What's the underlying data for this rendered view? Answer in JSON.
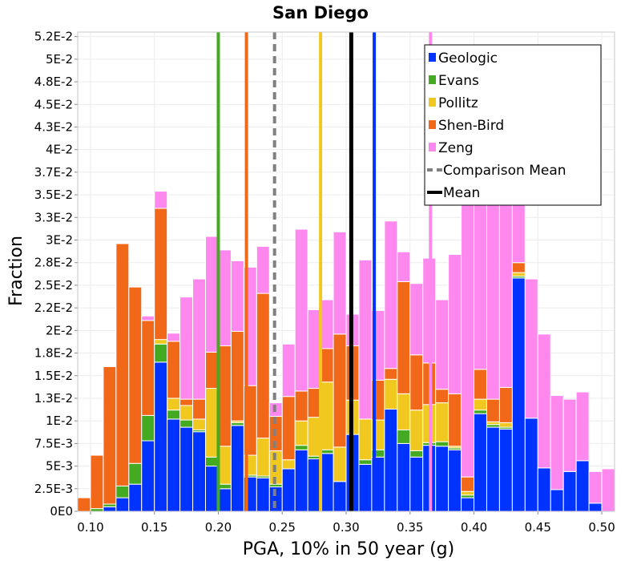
{
  "chart_data": {
    "type": "bar",
    "stacked": true,
    "title": "San Diego",
    "xlabel": "PGA, 10% in 50 year (g)",
    "ylabel": "Fraction",
    "xlim": [
      0.09,
      0.51
    ],
    "ylim": [
      0,
      0.053
    ],
    "grid": true,
    "legend_position": "top-right",
    "bin_width": 0.01,
    "x_ticks": [
      {
        "value": 0.1,
        "label": "0.10"
      },
      {
        "value": 0.15,
        "label": "0.15"
      },
      {
        "value": 0.2,
        "label": "0.20"
      },
      {
        "value": 0.25,
        "label": "0.25"
      },
      {
        "value": 0.3,
        "label": "0.30"
      },
      {
        "value": 0.35,
        "label": "0.35"
      },
      {
        "value": 0.4,
        "label": "0.40"
      },
      {
        "value": 0.45,
        "label": "0.45"
      },
      {
        "value": 0.5,
        "label": "0.50"
      }
    ],
    "y_ticks": [
      {
        "value": 0,
        "label": "0E0"
      },
      {
        "value": 0.0025,
        "label": "2.5E-3"
      },
      {
        "value": 0.005,
        "label": "5E-3"
      },
      {
        "value": 0.0075,
        "label": "7.5E-3"
      },
      {
        "value": 0.01,
        "label": "1E-2"
      },
      {
        "value": 0.0125,
        "label": "1.3E-2"
      },
      {
        "value": 0.015,
        "label": "1.5E-2"
      },
      {
        "value": 0.0175,
        "label": "1.8E-2"
      },
      {
        "value": 0.02,
        "label": "2E-2"
      },
      {
        "value": 0.0225,
        "label": "2.2E-2"
      },
      {
        "value": 0.025,
        "label": "2.5E-2"
      },
      {
        "value": 0.0275,
        "label": "2.8E-2"
      },
      {
        "value": 0.03,
        "label": "3E-2"
      },
      {
        "value": 0.0325,
        "label": "3.3E-2"
      },
      {
        "value": 0.035,
        "label": "3.5E-2"
      },
      {
        "value": 0.0375,
        "label": "3.7E-2"
      },
      {
        "value": 0.04,
        "label": "4E-2"
      },
      {
        "value": 0.0425,
        "label": "4.3E-2"
      },
      {
        "value": 0.045,
        "label": "4.5E-2"
      },
      {
        "value": 0.0475,
        "label": "4.8E-2"
      },
      {
        "value": 0.05,
        "label": "5E-2"
      },
      {
        "value": 0.0525,
        "label": "5.2E-2"
      }
    ],
    "bins_x": [
      0.095,
      0.105,
      0.115,
      0.125,
      0.135,
      0.145,
      0.155,
      0.165,
      0.175,
      0.185,
      0.195,
      0.205,
      0.215,
      0.225,
      0.235,
      0.245,
      0.255,
      0.265,
      0.275,
      0.285,
      0.295,
      0.305,
      0.315,
      0.325,
      0.335,
      0.345,
      0.355,
      0.365,
      0.375,
      0.385,
      0.395,
      0.405,
      0.415,
      0.425,
      0.435,
      0.445,
      0.455,
      0.465,
      0.475,
      0.485,
      0.495,
      0.505
    ],
    "series": [
      {
        "name": "Geologic",
        "color": "#0033ff",
        "values": [
          0,
          0,
          0.0005,
          0.0015,
          0.003,
          0.0078,
          0.0165,
          0.0102,
          0.0093,
          0.0088,
          0.005,
          0.0025,
          0.0095,
          0.0038,
          0.0037,
          0.0027,
          0.0047,
          0.0068,
          0.0058,
          0.0064,
          0.0033,
          0.0085,
          0.0052,
          0.006,
          0.0113,
          0.0075,
          0.006,
          0.0073,
          0.0072,
          0.0068,
          0.0015,
          0.0108,
          0.0093,
          0.0091,
          0.0258,
          0.0103,
          0.0048,
          0.0024,
          0.0044,
          0.0056,
          0.0009,
          0
        ]
      },
      {
        "name": "Evans",
        "color": "#44aa22",
        "values": [
          0,
          0.0003,
          0.0003,
          0.0013,
          0.0023,
          0.0028,
          0.002,
          0.001,
          0.0008,
          0.0002,
          0.001,
          0.0005,
          0.0003,
          0.0002,
          0.0002,
          0.0003,
          0,
          0.0005,
          0.0003,
          0.0004,
          0,
          0,
          0.0005,
          0.0008,
          0,
          0.0015,
          0.0007,
          0.0003,
          0.0005,
          0.0002,
          0.0003,
          0.0004,
          0.0003,
          0.0002,
          0.0002,
          0,
          0,
          0,
          0,
          0,
          0,
          0
        ]
      },
      {
        "name": "Pollitz",
        "color": "#f0c820",
        "values": [
          0,
          0,
          0,
          0,
          0,
          0,
          0.0005,
          0.0013,
          0.0016,
          0.0012,
          0.0076,
          0.0042,
          0.0002,
          0.0022,
          0.0042,
          0.0037,
          0.001,
          0.0027,
          0.0043,
          0.0075,
          0.0038,
          0.0038,
          0.0045,
          0.0033,
          0.0033,
          0.004,
          0.0045,
          0.0042,
          0.0043,
          0.0002,
          0.0004,
          0.0012,
          0.0003,
          0.0005,
          0.0004,
          0,
          0,
          0,
          0,
          0,
          0,
          0
        ]
      },
      {
        "name": "Shen-Bird",
        "color": "#f06818",
        "values": [
          0.0015,
          0.0059,
          0.0152,
          0.0268,
          0.0195,
          0.0105,
          0.0145,
          0.0063,
          0.0007,
          0.0022,
          0.004,
          0.0111,
          0.0099,
          0.0077,
          0.016,
          0.0038,
          0.007,
          0.0033,
          0.0032,
          0.0037,
          0.0125,
          0.006,
          0,
          0.0044,
          0.0012,
          0.0124,
          0.0061,
          0.0046,
          0.0015,
          0.0058,
          0.0016,
          0.0033,
          0.0025,
          0.0039,
          0.0011,
          0,
          0,
          0,
          0,
          0,
          0,
          0
        ]
      },
      {
        "name": "Zeng",
        "color": "#ff88ee",
        "values": [
          0,
          0,
          0,
          0,
          0,
          0.0005,
          0.0019,
          0.0009,
          0.0113,
          0.0133,
          0.0128,
          0.0106,
          0.0078,
          0.0131,
          0.0052,
          0.0015,
          0.0058,
          0.0179,
          0.0087,
          0.0054,
          0.0113,
          0.0035,
          0.0176,
          0.0077,
          0.0163,
          0.0033,
          0.0079,
          0.0116,
          0.0099,
          0.0154,
          0.0312,
          0.0185,
          0.0281,
          0.0253,
          0.0127,
          0.0154,
          0.0148,
          0.0104,
          0.008,
          0.0076,
          0.0035,
          0.0047
        ]
      }
    ],
    "reference_lines": [
      {
        "name": "Geologic",
        "color": "#0033ff",
        "x": 0.322,
        "style": "solid"
      },
      {
        "name": "Evans",
        "color": "#44aa22",
        "x": 0.2,
        "style": "solid"
      },
      {
        "name": "Pollitz",
        "color": "#f0c820",
        "x": 0.28,
        "style": "solid"
      },
      {
        "name": "Shen-Bird",
        "color": "#f06818",
        "x": 0.222,
        "style": "solid"
      },
      {
        "name": "Zeng",
        "color": "#ff88ee",
        "x": 0.366,
        "style": "solid"
      },
      {
        "name": "Comparison Mean",
        "color": "#808080",
        "x": 0.244,
        "style": "dashed"
      },
      {
        "name": "Mean",
        "color": "#000000",
        "x": 0.304,
        "style": "solid"
      }
    ],
    "legend": [
      {
        "label": "Geologic",
        "color": "#0033ff",
        "kind": "box"
      },
      {
        "label": "Evans",
        "color": "#44aa22",
        "kind": "box"
      },
      {
        "label": "Pollitz",
        "color": "#f0c820",
        "kind": "box"
      },
      {
        "label": "Shen-Bird",
        "color": "#f06818",
        "kind": "box"
      },
      {
        "label": "Zeng",
        "color": "#ff88ee",
        "kind": "box"
      },
      {
        "label": "Comparison Mean",
        "color": "#808080",
        "kind": "dashed"
      },
      {
        "label": "Mean",
        "color": "#000000",
        "kind": "line"
      }
    ]
  }
}
